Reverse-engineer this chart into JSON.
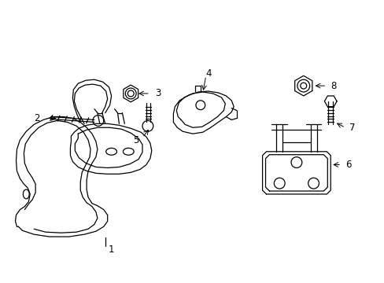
{
  "background_color": "#ffffff",
  "line_color": "#000000",
  "figsize": [
    4.89,
    3.6
  ],
  "dpi": 100,
  "label_fontsize": 8.5
}
